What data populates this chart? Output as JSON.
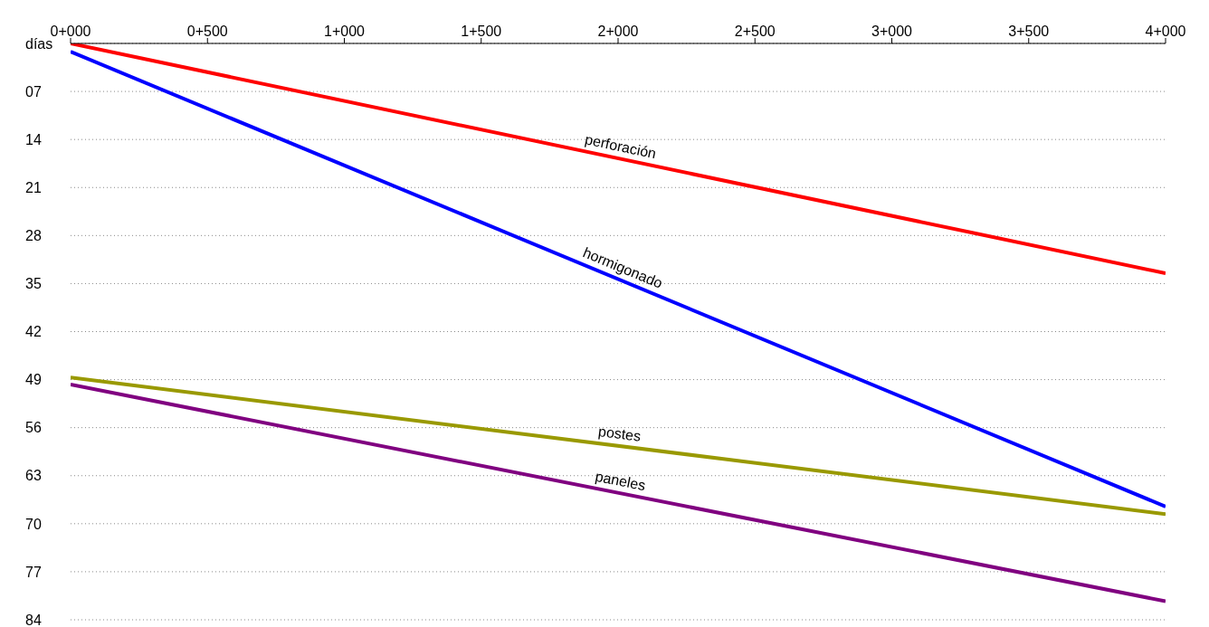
{
  "chart_data": {
    "type": "line",
    "categories": [
      "0+000",
      "0+500",
      "1+000",
      "1+500",
      "2+000",
      "2+500",
      "3+000",
      "3+500",
      "4+000"
    ],
    "series": [
      {
        "name": "perforación",
        "color": "#ff0000",
        "x": [
          "0+000",
          "4+000"
        ],
        "values": [
          0,
          33.5
        ]
      },
      {
        "name": "hormigonado",
        "color": "#0000ff",
        "x": [
          "0+000",
          "4+000"
        ],
        "values": [
          1.2,
          67.5
        ]
      },
      {
        "name": "postes",
        "color": "#999900",
        "x": [
          "0+000",
          "4+000"
        ],
        "values": [
          48.7,
          68.6
        ]
      },
      {
        "name": "paneles",
        "color": "#800080",
        "x": [
          "0+000",
          "4+000"
        ],
        "values": [
          49.7,
          81.3
        ]
      }
    ],
    "ylim": [
      84,
      0
    ],
    "yticks": [
      {
        "value": 0,
        "label": "días"
      },
      {
        "value": 7,
        "label": "07"
      },
      14,
      21,
      28,
      35,
      42,
      49,
      56,
      63,
      70,
      77,
      84
    ],
    "grid": "y",
    "legend": false,
    "marker": "none",
    "line_style": "solid"
  }
}
